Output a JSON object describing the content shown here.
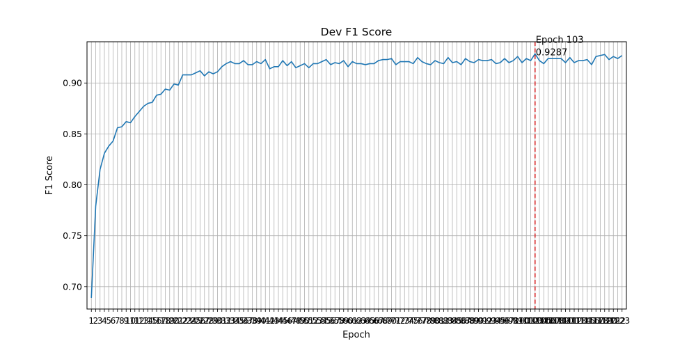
{
  "chart_data": {
    "type": "line",
    "title": "Dev F1 Score",
    "xlabel": "Epoch",
    "ylabel": "F1 Score",
    "grid": true,
    "xlim": [
      0,
      124
    ],
    "ylim": [
      0.678,
      0.9405
    ],
    "yticks": [
      0.7,
      0.75,
      0.8,
      0.85,
      0.9
    ],
    "line_color": "#1f77b4",
    "marker_color": "#d62728",
    "best": {
      "epoch": 103,
      "value": 0.9287,
      "label_line1": "Epoch 103",
      "label_line2": "0.9287"
    },
    "x": [
      1,
      2,
      3,
      4,
      5,
      6,
      7,
      8,
      9,
      10,
      11,
      12,
      13,
      14,
      15,
      16,
      17,
      18,
      19,
      20,
      21,
      22,
      23,
      24,
      25,
      26,
      27,
      28,
      29,
      30,
      31,
      32,
      33,
      34,
      35,
      36,
      37,
      38,
      39,
      40,
      41,
      42,
      43,
      44,
      45,
      46,
      47,
      48,
      49,
      50,
      51,
      52,
      53,
      54,
      55,
      56,
      57,
      58,
      59,
      60,
      61,
      62,
      63,
      64,
      65,
      66,
      67,
      68,
      69,
      70,
      71,
      72,
      73,
      74,
      75,
      76,
      77,
      78,
      79,
      80,
      81,
      82,
      83,
      84,
      85,
      86,
      87,
      88,
      89,
      90,
      91,
      92,
      93,
      94,
      95,
      96,
      97,
      98,
      99,
      100,
      101,
      102,
      103,
      104,
      105,
      106,
      107,
      108,
      109,
      110,
      111,
      112,
      113,
      114,
      115,
      116,
      117,
      118,
      119,
      120,
      121,
      122,
      123
    ],
    "values": [
      0.689,
      0.779,
      0.815,
      0.831,
      0.838,
      0.843,
      0.856,
      0.857,
      0.862,
      0.861,
      0.867,
      0.872,
      0.877,
      0.88,
      0.881,
      0.888,
      0.889,
      0.894,
      0.893,
      0.899,
      0.898,
      0.908,
      0.908,
      0.908,
      0.91,
      0.912,
      0.907,
      0.911,
      0.909,
      0.911,
      0.916,
      0.919,
      0.921,
      0.919,
      0.919,
      0.922,
      0.918,
      0.918,
      0.921,
      0.919,
      0.923,
      0.914,
      0.916,
      0.916,
      0.922,
      0.917,
      0.921,
      0.915,
      0.917,
      0.919,
      0.915,
      0.919,
      0.919,
      0.921,
      0.923,
      0.918,
      0.92,
      0.919,
      0.922,
      0.916,
      0.921,
      0.919,
      0.919,
      0.918,
      0.919,
      0.919,
      0.922,
      0.923,
      0.923,
      0.924,
      0.918,
      0.921,
      0.921,
      0.921,
      0.919,
      0.925,
      0.921,
      0.919,
      0.918,
      0.922,
      0.92,
      0.919,
      0.925,
      0.92,
      0.921,
      0.918,
      0.924,
      0.921,
      0.92,
      0.923,
      0.922,
      0.922,
      0.923,
      0.919,
      0.92,
      0.924,
      0.92,
      0.922,
      0.926,
      0.92,
      0.924,
      0.922,
      0.9287,
      0.922,
      0.919,
      0.924,
      0.924,
      0.924,
      0.924,
      0.92,
      0.925,
      0.92,
      0.922,
      0.922,
      0.923,
      0.918,
      0.926,
      0.927,
      0.928,
      0.923,
      0.926,
      0.924,
      0.927
    ]
  }
}
